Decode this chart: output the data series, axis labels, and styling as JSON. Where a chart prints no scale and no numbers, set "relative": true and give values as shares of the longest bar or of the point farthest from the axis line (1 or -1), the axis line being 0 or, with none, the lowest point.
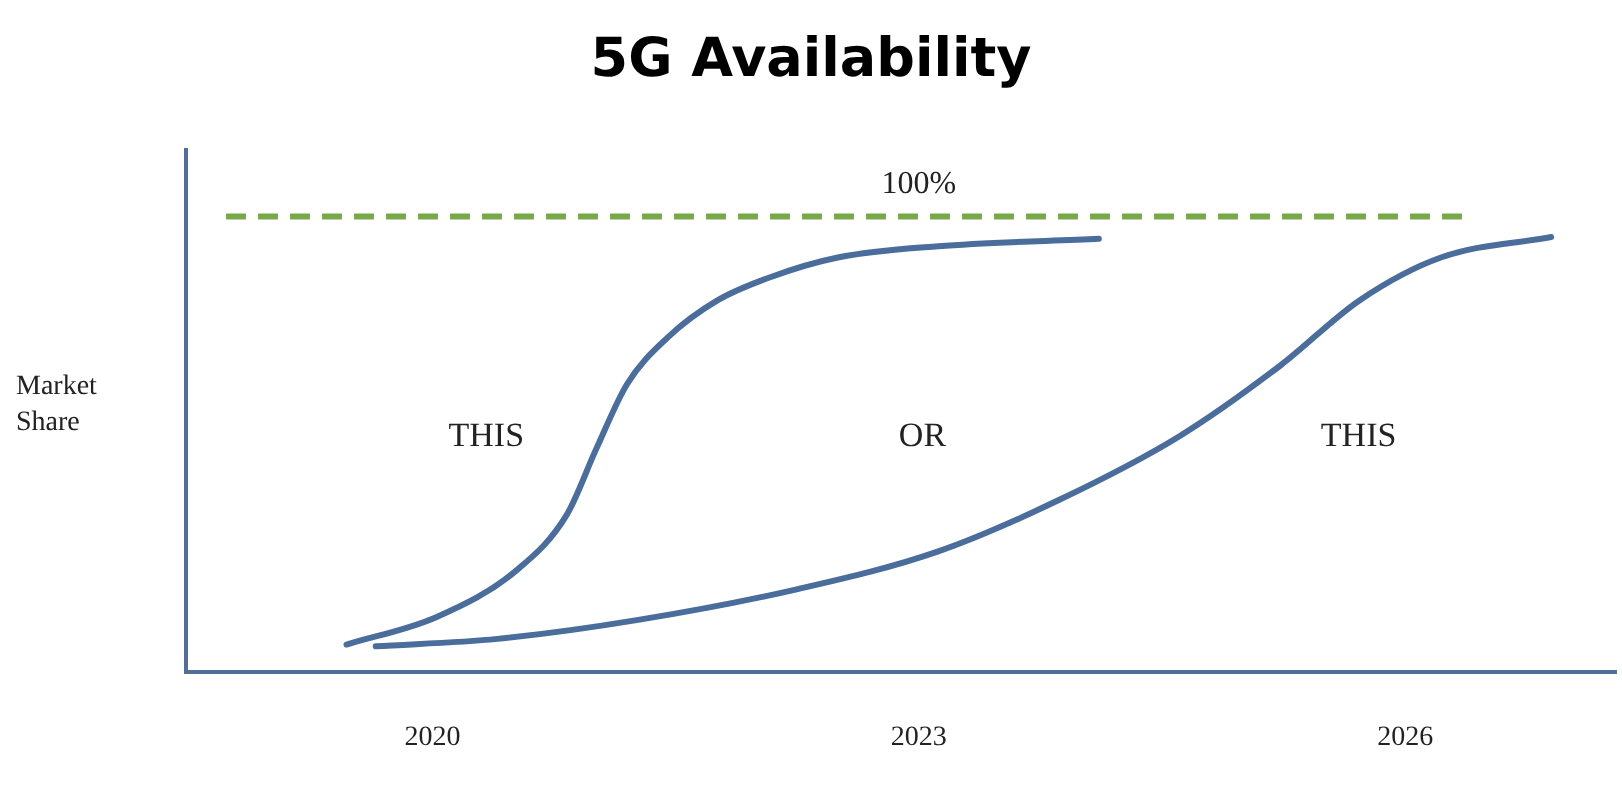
{
  "chart_data": {
    "type": "line",
    "title": "5G Availability",
    "ylabel": "Market Share",
    "relative": true,
    "grid": false,
    "legend": false,
    "marker": "none",
    "line_style": "solid",
    "xlim": [
      2018.48,
      2027.3
    ],
    "xticks": [
      2020,
      2023,
      2026
    ],
    "series": [
      {
        "color": "#4a6d9c",
        "x": [
          2019.47,
          2020.03,
          2020.52,
          2020.83,
          2021.01,
          2021.2,
          2021.45,
          2021.76,
          2022.07,
          2022.5,
          2023.12,
          2024.11
        ],
        "values": [
          0.064,
          0.128,
          0.235,
          0.363,
          0.513,
          0.662,
          0.769,
          0.855,
          0.906,
          0.953,
          0.979,
          0.996
        ]
      },
      {
        "color": "#4a6d9c",
        "x": [
          2019.65,
          2020.4,
          2021.26,
          2022.26,
          2023.12,
          2023.87,
          2024.61,
          2025.23,
          2025.72,
          2026.22,
          2026.9
        ],
        "values": [
          0.06,
          0.077,
          0.12,
          0.192,
          0.278,
          0.397,
          0.543,
          0.705,
          0.855,
          0.953,
          1.0
        ]
      }
    ],
    "ref_lines": [
      {
        "axis": "y",
        "value": 1.047,
        "color": "#77a84a",
        "line_style": "dashed"
      }
    ],
    "annotations": [
      {
        "text": "100%",
        "x": 2023.0,
        "y": 1.047
      },
      "THIS",
      "OR",
      "THIS"
    ]
  }
}
